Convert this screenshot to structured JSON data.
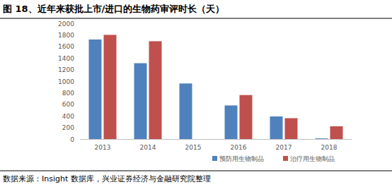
{
  "chart_data": {
    "type": "bar",
    "title": "图 18、近年来获批上市/进口的生物药审评时长（天）",
    "source": "数据来源：Insight 数据库，兴业证券经济与金融研究院整理",
    "categories": [
      "2013",
      "2014",
      "2015",
      "2016",
      "2017",
      "2018"
    ],
    "series": [
      {
        "name": "预防用生物制品",
        "color": "#4f81bd",
        "values": [
          1720,
          1310,
          960,
          580,
          390,
          10
        ]
      },
      {
        "name": "治疗用生物制品",
        "color": "#c0504d",
        "values": [
          1800,
          1690,
          null,
          760,
          360,
          220
        ]
      }
    ],
    "ylim": [
      0,
      2000
    ],
    "yticks": [
      0,
      200,
      400,
      600,
      800,
      1000,
      1200,
      1400,
      1600,
      1800,
      2000
    ],
    "grid": false,
    "legend": "bottom"
  }
}
